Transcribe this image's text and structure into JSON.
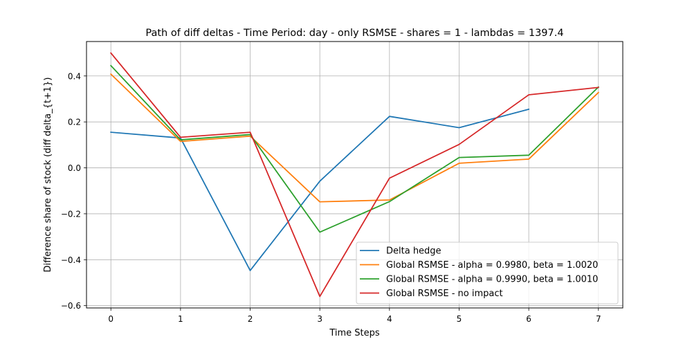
{
  "chart_data": {
    "type": "line",
    "title": "Path of diff deltas - Time Period: day - only RSMSE - shares = 1 - lambdas = 1397.4",
    "xlabel": "Time Steps",
    "ylabel": "Difference share of stock (diff delta_{t+1})",
    "xlim": [
      -0.35,
      7.35
    ],
    "ylim": [
      -0.61,
      0.55
    ],
    "x_ticks": [
      0,
      1,
      2,
      3,
      4,
      5,
      6,
      7
    ],
    "y_ticks": [
      -0.6,
      -0.4,
      -0.2,
      0.0,
      0.2,
      0.4
    ],
    "y_tick_labels": [
      "−0.6",
      "−0.4",
      "−0.2",
      "0.0",
      "0.2",
      "0.4"
    ],
    "grid": true,
    "legend_position": "lower-right",
    "series": [
      {
        "name": "Delta hedge",
        "color": "#1f77b4",
        "x": [
          0,
          1,
          2,
          3,
          4,
          5,
          6
        ],
        "y": [
          0.155,
          0.13,
          -0.447,
          -0.058,
          0.224,
          0.175,
          0.255
        ]
      },
      {
        "name": "Global RSMSE - alpha = 0.9980, beta = 1.0020",
        "color": "#ff7f0e",
        "x": [
          0,
          1,
          2,
          3,
          4,
          5,
          6,
          7
        ],
        "y": [
          0.408,
          0.115,
          0.138,
          -0.148,
          -0.14,
          0.02,
          0.038,
          0.328
        ]
      },
      {
        "name": "Global RSMSE - alpha = 0.9990, beta = 1.0010",
        "color": "#2ca02c",
        "x": [
          0,
          1,
          2,
          3,
          4,
          5,
          6,
          7
        ],
        "y": [
          0.445,
          0.122,
          0.145,
          -0.28,
          -0.147,
          0.045,
          0.055,
          0.352
        ]
      },
      {
        "name": "Global RSMSE - no impact",
        "color": "#d62728",
        "x": [
          0,
          1,
          2,
          3,
          4,
          5,
          6,
          7
        ],
        "y": [
          0.5,
          0.133,
          0.155,
          -0.56,
          -0.045,
          0.102,
          0.318,
          0.35
        ]
      }
    ]
  }
}
